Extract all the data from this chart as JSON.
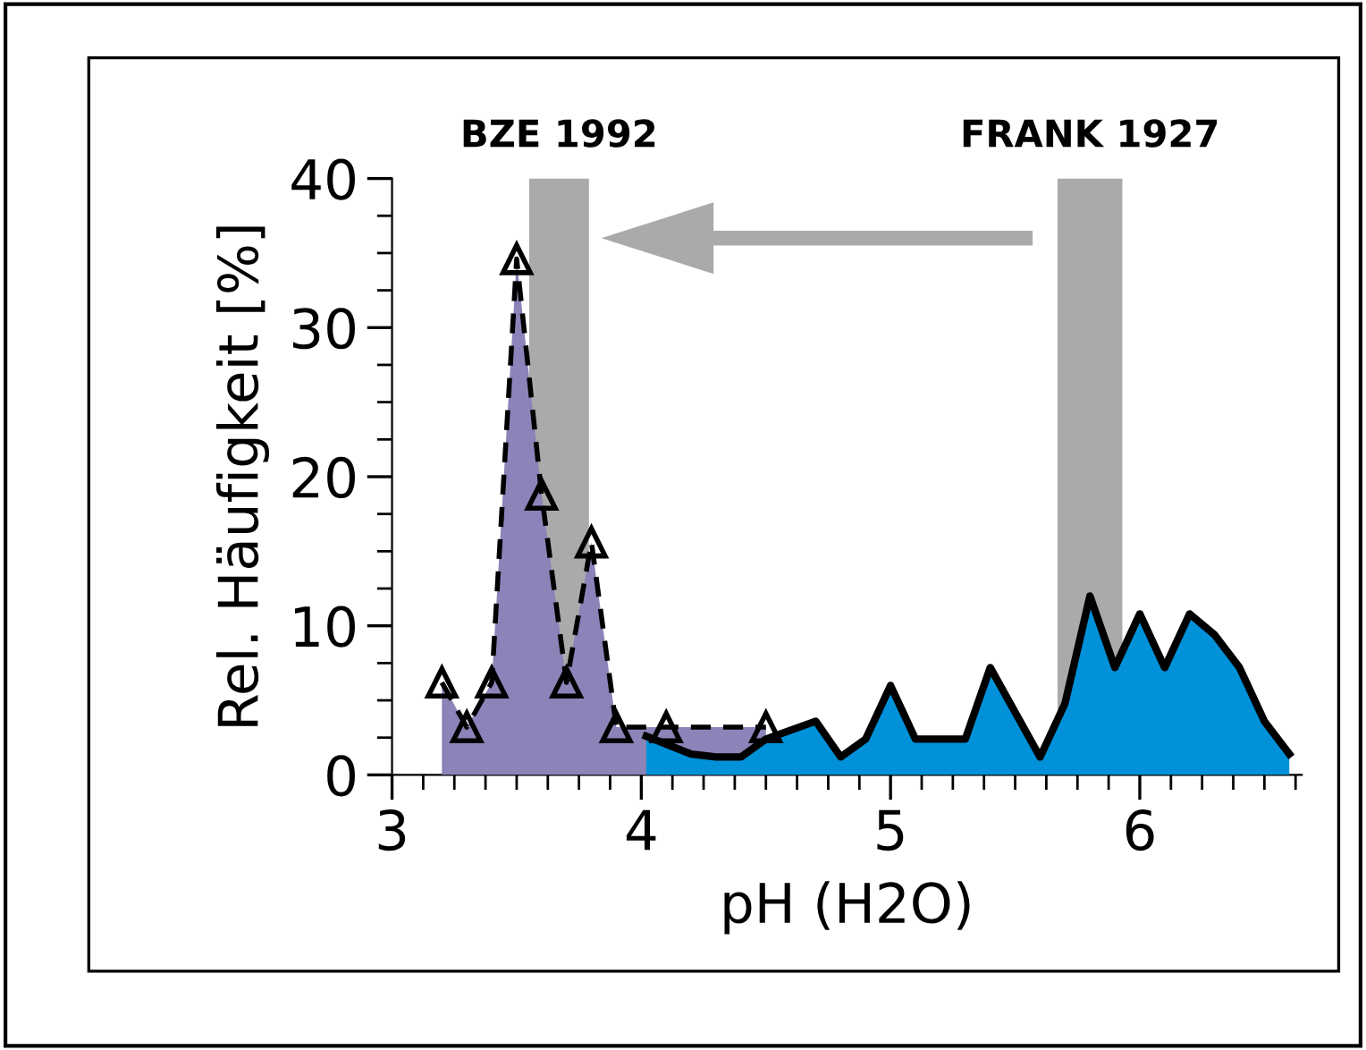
{
  "chart_data": {
    "type": "area",
    "xlabel": "pH (H2O)",
    "ylabel": "Rel. Häufigkeit [%]",
    "xlim": [
      3,
      6.65
    ],
    "xticks": [
      3,
      4,
      5,
      6
    ],
    "ylim": [
      0,
      40
    ],
    "yticks": [
      0,
      10,
      20,
      30,
      40
    ],
    "grid": false,
    "series": [
      {
        "color": "#8b84b8",
        "line_style": "dashed",
        "marker": "triangle",
        "x": [
          3.2,
          3.3,
          3.4,
          3.5,
          3.6,
          3.7,
          3.8,
          3.9,
          4.1,
          4.5
        ],
        "values": [
          6.2,
          3.2,
          6.2,
          34.6,
          18.8,
          6.2,
          15.6,
          3.2,
          3.2,
          3.2
        ]
      },
      {
        "color": "#0091d9",
        "line_style": "solid",
        "marker": "none",
        "x": [
          4.02,
          4.2,
          4.3,
          4.4,
          4.5,
          4.7,
          4.8,
          4.9,
          5.0,
          5.1,
          5.3,
          5.4,
          5.6,
          5.7,
          5.8,
          5.9,
          6.0,
          6.1,
          6.2,
          6.3,
          6.4,
          6.5,
          6.6
        ],
        "values": [
          2.6,
          1.4,
          1.2,
          1.2,
          2.4,
          3.6,
          1.2,
          2.4,
          6.0,
          2.4,
          2.4,
          7.2,
          1.2,
          4.8,
          12.0,
          7.2,
          10.8,
          7.2,
          10.8,
          9.4,
          7.2,
          3.6,
          1.4
        ]
      }
    ],
    "bands": [
      {
        "axis": "x",
        "from": 3.55,
        "to": 3.79,
        "label": "BZE 1992",
        "color": "#aaaaaa"
      },
      {
        "axis": "x",
        "from": 5.67,
        "to": 5.93,
        "label": "FRANK 1927",
        "color": "#aaaaaa"
      }
    ]
  }
}
